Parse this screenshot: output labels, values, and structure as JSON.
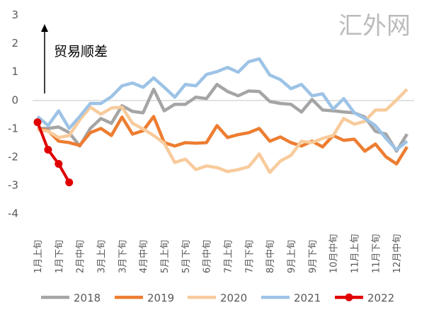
{
  "chart_data": {
    "type": "line",
    "annotation": "贸易顺差",
    "ylim": [
      -4,
      3
    ],
    "y_ticks": [
      "3",
      "2",
      "1",
      "0",
      "-1",
      "-2",
      "-3",
      "-4"
    ],
    "categories_count": 36,
    "x_tick_labels": [
      "1月上旬",
      "1月下旬",
      "2月中旬",
      "3月上旬",
      "3月下旬",
      "4月中旬",
      "5月上旬",
      "5月下旬",
      "6月中旬",
      "7月上旬",
      "7月下旬",
      "8月中旬",
      "9月上旬",
      "9月下旬",
      "10月中旬",
      "11月上旬",
      "11月下旬",
      "12月中旬"
    ],
    "grid": false,
    "legend_position": "bottom",
    "series": [
      {
        "name": "2018",
        "color": "#a5a5a5",
        "values": [
          -1.0,
          -1.0,
          -0.95,
          -1.15,
          -1.62,
          -1.0,
          -0.65,
          -0.82,
          -0.2,
          -0.4,
          -0.45,
          0.38,
          -0.38,
          -0.15,
          -0.15,
          0.1,
          0.05,
          0.55,
          0.3,
          0.15,
          0.32,
          0.3,
          -0.05,
          -0.12,
          -0.15,
          -0.42,
          0.02,
          -0.35,
          -0.38,
          -0.42,
          -0.45,
          -0.6,
          -1.1,
          -1.2,
          -1.8,
          -1.2
        ]
      },
      {
        "name": "2019",
        "color": "#ed7d31",
        "values": [
          -1.0,
          -1.08,
          -1.45,
          -1.5,
          -1.6,
          -1.15,
          -1.0,
          -1.25,
          -0.6,
          -1.2,
          -1.08,
          -0.58,
          -1.5,
          -1.62,
          -1.5,
          -1.52,
          -1.5,
          -0.9,
          -1.32,
          -1.22,
          -1.15,
          -1.0,
          -1.45,
          -1.3,
          -1.5,
          -1.62,
          -1.45,
          -1.65,
          -1.25,
          -1.42,
          -1.38,
          -1.8,
          -1.55,
          -2.0,
          -2.25,
          -1.65
        ]
      },
      {
        "name": "2020",
        "color": "#f8cb9c",
        "values": [
          -1.05,
          -1.1,
          -1.32,
          -1.25,
          -0.7,
          -0.25,
          -0.5,
          -0.28,
          -0.25,
          -0.82,
          -1.02,
          -1.25,
          -1.52,
          -2.2,
          -2.08,
          -2.45,
          -2.32,
          -2.38,
          -2.52,
          -2.45,
          -2.35,
          -1.9,
          -2.55,
          -2.15,
          -1.95,
          -1.45,
          -1.5,
          -1.35,
          -1.25,
          -0.65,
          -0.85,
          -0.75,
          -0.35,
          -0.35,
          0.0,
          0.38
        ]
      },
      {
        "name": "2021",
        "color": "#9dc3e6",
        "values": [
          -0.58,
          -0.9,
          -0.38,
          -1.0,
          -0.58,
          -0.12,
          -0.12,
          0.12,
          0.5,
          0.6,
          0.45,
          0.78,
          0.45,
          0.1,
          0.55,
          0.5,
          0.9,
          1.0,
          1.15,
          0.98,
          1.35,
          1.45,
          0.88,
          0.72,
          0.4,
          0.55,
          0.15,
          0.22,
          -0.32,
          0.05,
          -0.45,
          -0.65,
          -0.9,
          -1.35,
          -1.75,
          -1.45
        ]
      },
      {
        "name": "2022",
        "color": "#e00000",
        "markers": true,
        "values": [
          -0.78,
          -1.75,
          -2.25,
          -2.9
        ]
      }
    ]
  },
  "watermark": "汇外网"
}
